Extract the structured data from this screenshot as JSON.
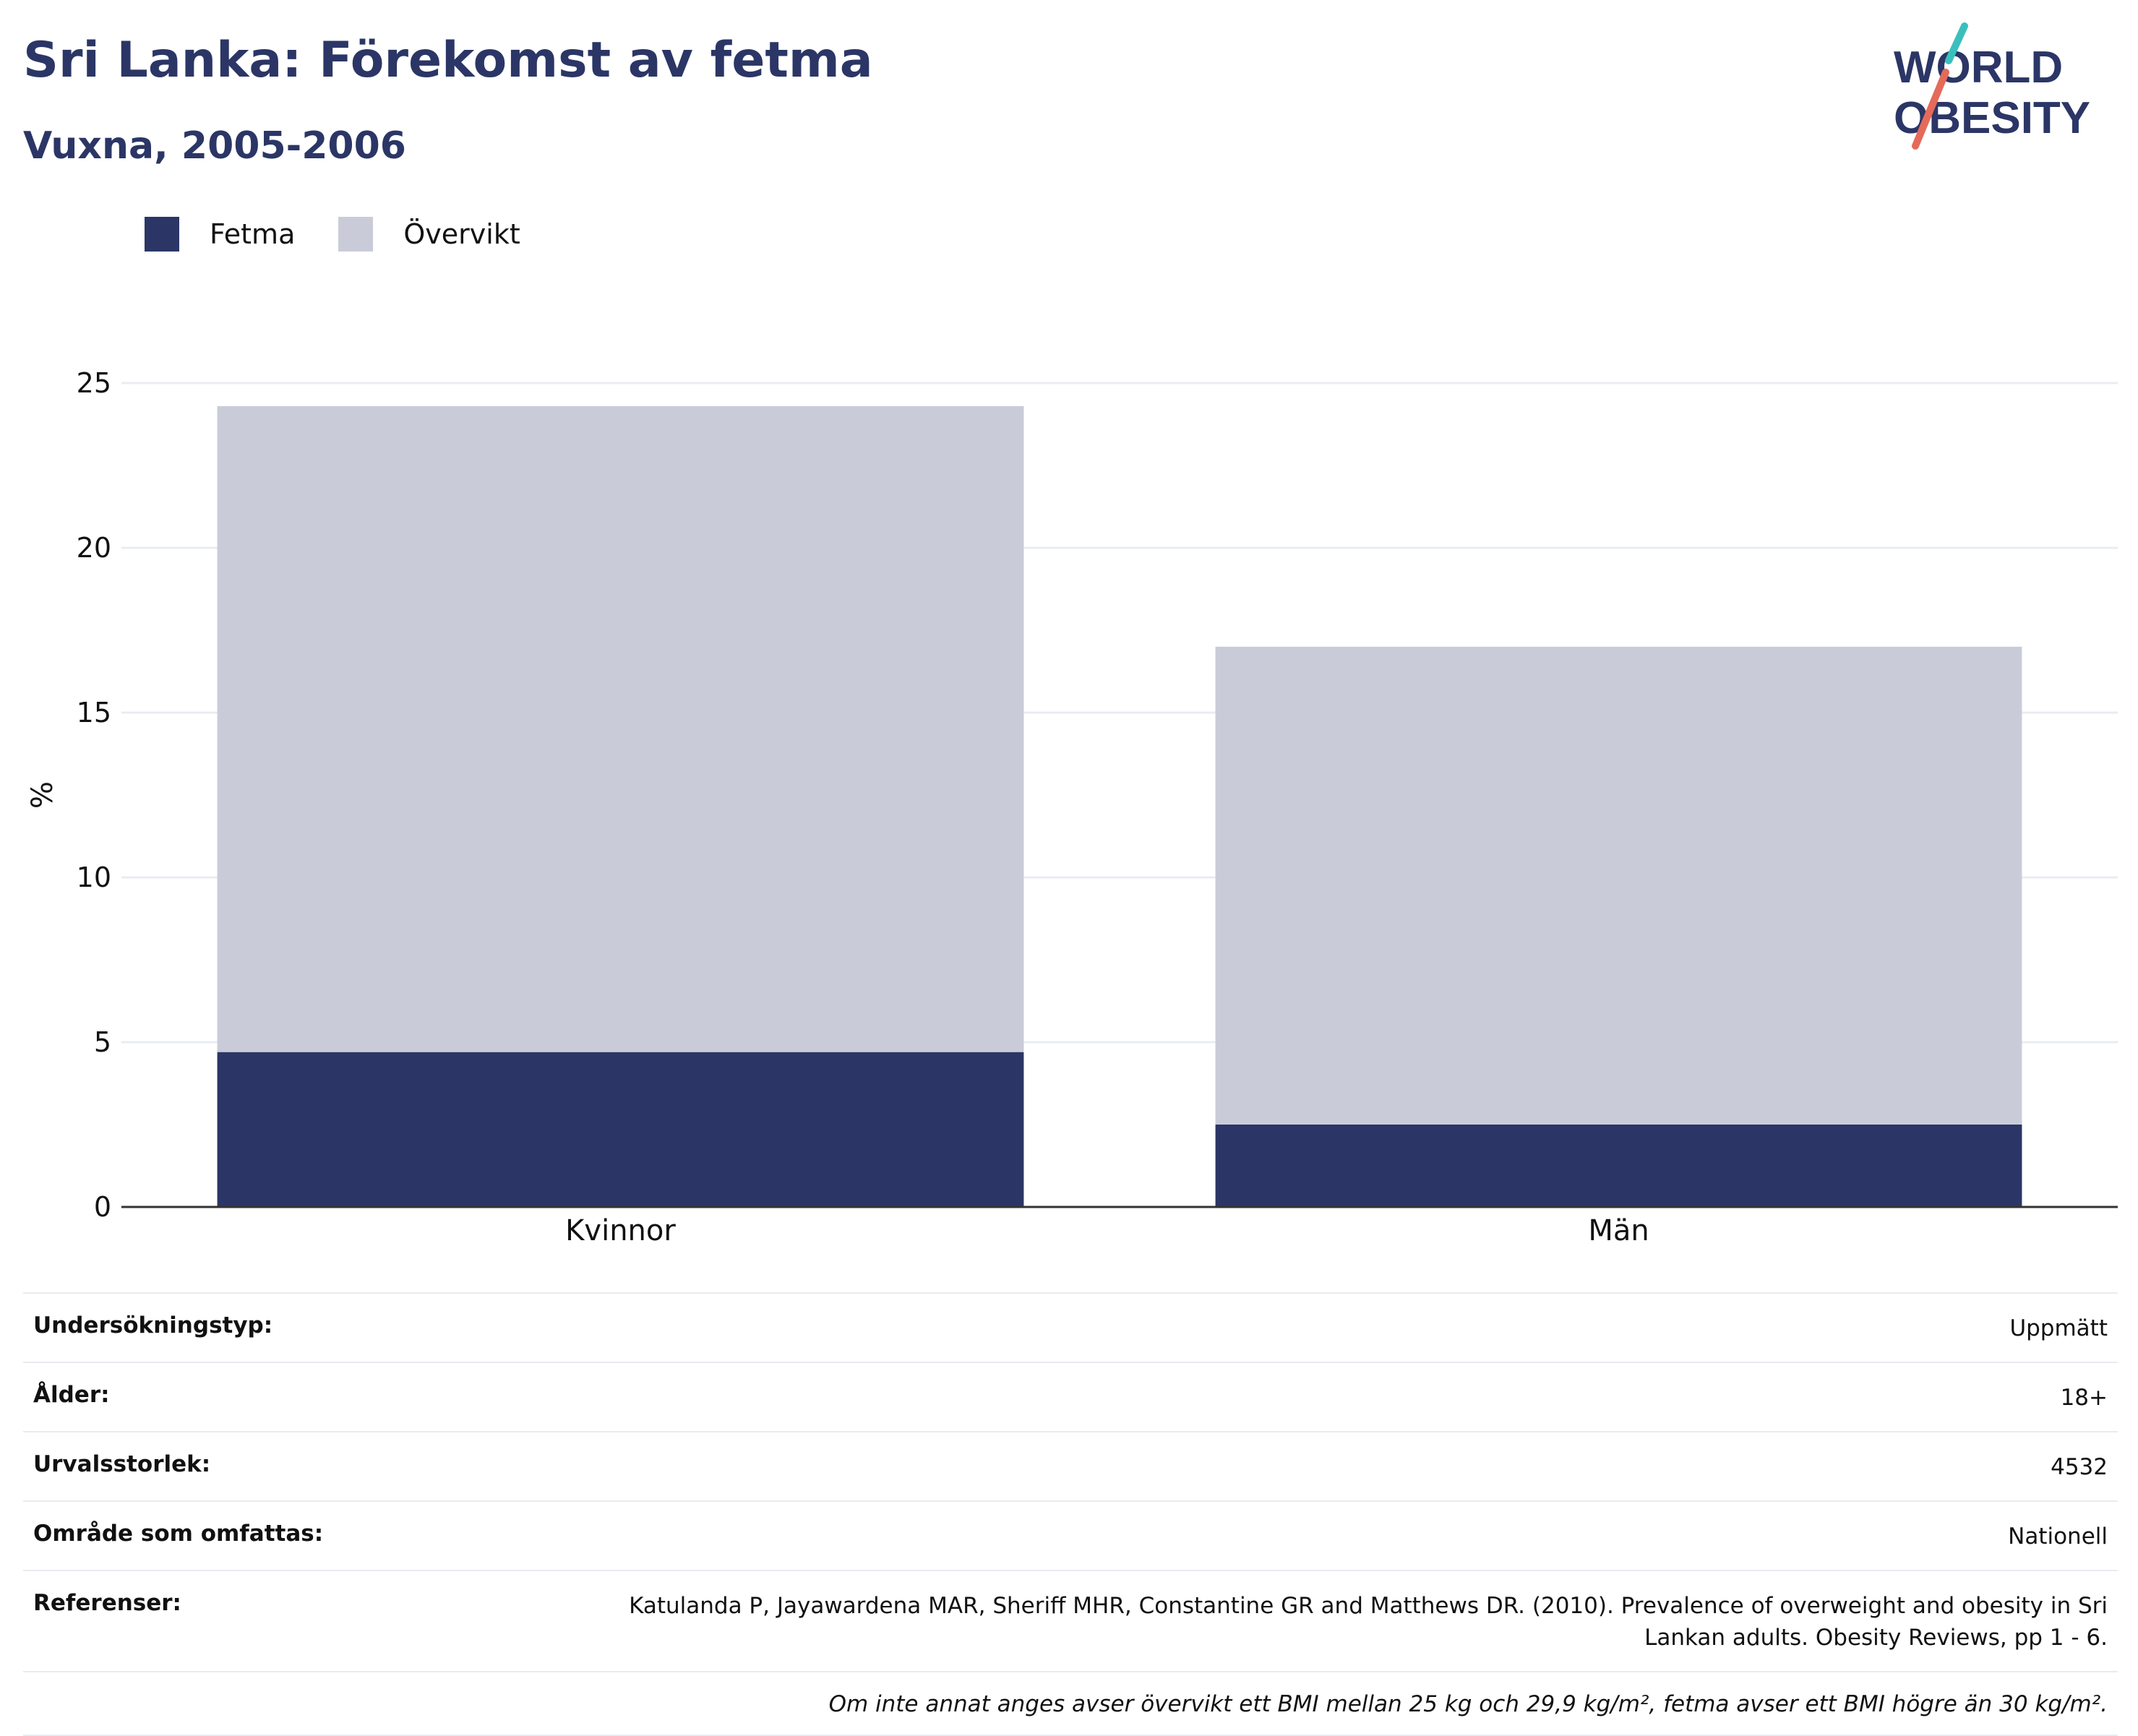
{
  "header": {
    "title": "Sri Lanka: Förekomst av fetma",
    "subtitle": "Vuxna, 2005-2006"
  },
  "logo": {
    "line1": "WORLD",
    "line2": "OBESITY",
    "colors": {
      "text": "#2b3666",
      "slash_top": "#3bbfbd",
      "slash_bottom": "#e56a5a"
    }
  },
  "legend": {
    "items": [
      {
        "label": "Fetma",
        "color": "#2b3666"
      },
      {
        "label": "Övervikt",
        "color": "#c9ccd8"
      }
    ]
  },
  "chart_data": {
    "type": "bar",
    "stacked": true,
    "categories": [
      "Kvinnor",
      "Män"
    ],
    "series": [
      {
        "name": "Fetma",
        "values": [
          4.7,
          2.5
        ],
        "color": "#2b3666"
      },
      {
        "name": "Övervikt",
        "values": [
          19.6,
          14.5
        ],
        "color": "#c9ccd8"
      }
    ],
    "ylabel": "%",
    "ylim": [
      0,
      25
    ],
    "yticks": [
      0,
      5,
      10,
      15,
      20,
      25
    ],
    "grid": true,
    "legend_position": "top-left"
  },
  "meta": {
    "rows": [
      {
        "key": "Undersökningstyp:",
        "value": "Uppmätt"
      },
      {
        "key": "Ålder:",
        "value": "18+"
      },
      {
        "key": "Urvalsstorlek:",
        "value": "4532"
      },
      {
        "key": "Område som omfattas:",
        "value": "Nationell"
      },
      {
        "key": "Referenser:",
        "value": "Katulanda P, Jayawardena MAR, Sheriff MHR, Constantine GR and Matthews DR. (2010). Prevalence of overweight and obesity in Sri Lankan adults. Obesity Reviews, pp 1 - 6."
      }
    ],
    "note": "Om inte annat anges avser övervikt ett BMI mellan 25 kg och 29,9 kg/m², fetma avser ett BMI högre än 30 kg/m²."
  }
}
